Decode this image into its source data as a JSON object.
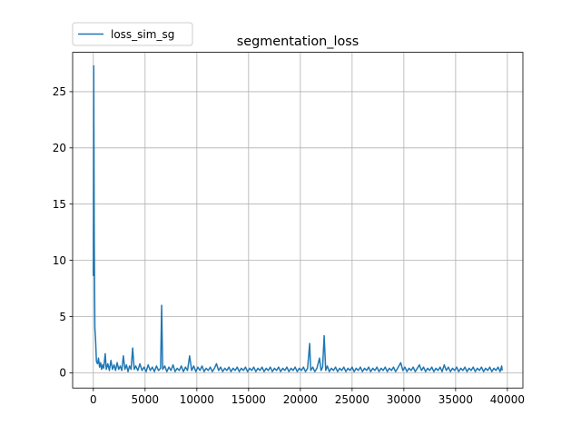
{
  "chart_data": {
    "type": "line",
    "title": "segmentation_loss",
    "xlabel": "",
    "ylabel": "",
    "xlim": [
      -2000,
      41500
    ],
    "ylim": [
      -1.36,
      28.5
    ],
    "xticks": [
      0,
      5000,
      10000,
      15000,
      20000,
      25000,
      30000,
      35000,
      40000
    ],
    "yticks": [
      0,
      5,
      10,
      15,
      20,
      25
    ],
    "grid": true,
    "legend_position": "top-left",
    "series": [
      {
        "name": "loss_sim_sg",
        "color": "#1f77b4",
        "points": [
          [
            0,
            8.6
          ],
          [
            40,
            27.3
          ],
          [
            90,
            12.0
          ],
          [
            150,
            4.0
          ],
          [
            220,
            2.9
          ],
          [
            300,
            1.0
          ],
          [
            400,
            0.8
          ],
          [
            500,
            1.3
          ],
          [
            600,
            0.5
          ],
          [
            700,
            0.9
          ],
          [
            800,
            0.3
          ],
          [
            900,
            0.7
          ],
          [
            1000,
            0.4
          ],
          [
            1150,
            1.7
          ],
          [
            1250,
            0.3
          ],
          [
            1400,
            0.8
          ],
          [
            1550,
            0.2
          ],
          [
            1700,
            1.1
          ],
          [
            1850,
            0.3
          ],
          [
            2000,
            0.7
          ],
          [
            2150,
            0.2
          ],
          [
            2300,
            0.9
          ],
          [
            2450,
            0.3
          ],
          [
            2600,
            0.6
          ],
          [
            2750,
            0.2
          ],
          [
            2900,
            1.5
          ],
          [
            3050,
            0.3
          ],
          [
            3200,
            0.7
          ],
          [
            3350,
            0.1
          ],
          [
            3500,
            0.6
          ],
          [
            3650,
            0.3
          ],
          [
            3800,
            2.2
          ],
          [
            3950,
            0.3
          ],
          [
            4100,
            0.6
          ],
          [
            4300,
            0.2
          ],
          [
            4500,
            0.8
          ],
          [
            4700,
            0.2
          ],
          [
            4900,
            0.5
          ],
          [
            5100,
            0.1
          ],
          [
            5300,
            0.7
          ],
          [
            5500,
            0.2
          ],
          [
            5700,
            0.5
          ],
          [
            5900,
            0.1
          ],
          [
            6100,
            0.6
          ],
          [
            6300,
            0.2
          ],
          [
            6500,
            0.4
          ],
          [
            6600,
            6.0
          ],
          [
            6700,
            0.3
          ],
          [
            6900,
            0.6
          ],
          [
            7100,
            0.1
          ],
          [
            7300,
            0.5
          ],
          [
            7500,
            0.2
          ],
          [
            7700,
            0.7
          ],
          [
            7900,
            0.1
          ],
          [
            8100,
            0.4
          ],
          [
            8300,
            0.2
          ],
          [
            8500,
            0.6
          ],
          [
            8700,
            0.1
          ],
          [
            8900,
            0.5
          ],
          [
            9100,
            0.2
          ],
          [
            9300,
            1.5
          ],
          [
            9500,
            0.2
          ],
          [
            9700,
            0.6
          ],
          [
            9900,
            0.1
          ],
          [
            10100,
            0.5
          ],
          [
            10300,
            0.2
          ],
          [
            10500,
            0.6
          ],
          [
            10700,
            0.1
          ],
          [
            10900,
            0.4
          ],
          [
            11100,
            0.2
          ],
          [
            11300,
            0.5
          ],
          [
            11500,
            0.1
          ],
          [
            11700,
            0.4
          ],
          [
            11900,
            0.8
          ],
          [
            12100,
            0.2
          ],
          [
            12300,
            0.5
          ],
          [
            12500,
            0.1
          ],
          [
            12700,
            0.4
          ],
          [
            12900,
            0.2
          ],
          [
            13100,
            0.5
          ],
          [
            13300,
            0.1
          ],
          [
            13500,
            0.4
          ],
          [
            13700,
            0.2
          ],
          [
            13900,
            0.5
          ],
          [
            14100,
            0.1
          ],
          [
            14300,
            0.4
          ],
          [
            14500,
            0.2
          ],
          [
            14700,
            0.5
          ],
          [
            14900,
            0.1
          ],
          [
            15100,
            0.4
          ],
          [
            15300,
            0.2
          ],
          [
            15500,
            0.5
          ],
          [
            15700,
            0.1
          ],
          [
            15900,
            0.4
          ],
          [
            16100,
            0.2
          ],
          [
            16300,
            0.5
          ],
          [
            16500,
            0.1
          ],
          [
            16700,
            0.4
          ],
          [
            16900,
            0.2
          ],
          [
            17100,
            0.5
          ],
          [
            17300,
            0.1
          ],
          [
            17500,
            0.4
          ],
          [
            17700,
            0.2
          ],
          [
            17900,
            0.5
          ],
          [
            18100,
            0.1
          ],
          [
            18300,
            0.4
          ],
          [
            18500,
            0.2
          ],
          [
            18700,
            0.5
          ],
          [
            18900,
            0.1
          ],
          [
            19100,
            0.4
          ],
          [
            19300,
            0.2
          ],
          [
            19500,
            0.5
          ],
          [
            19700,
            0.1
          ],
          [
            19900,
            0.4
          ],
          [
            20100,
            0.2
          ],
          [
            20300,
            0.5
          ],
          [
            20500,
            0.1
          ],
          [
            20700,
            0.4
          ],
          [
            20900,
            2.6
          ],
          [
            21000,
            0.2
          ],
          [
            21200,
            0.5
          ],
          [
            21400,
            0.1
          ],
          [
            21600,
            0.4
          ],
          [
            21850,
            1.3
          ],
          [
            22000,
            0.2
          ],
          [
            22150,
            0.5
          ],
          [
            22300,
            3.3
          ],
          [
            22450,
            0.2
          ],
          [
            22600,
            0.6
          ],
          [
            22800,
            0.1
          ],
          [
            23000,
            0.4
          ],
          [
            23200,
            0.2
          ],
          [
            23400,
            0.5
          ],
          [
            23600,
            0.1
          ],
          [
            23800,
            0.4
          ],
          [
            24000,
            0.2
          ],
          [
            24200,
            0.5
          ],
          [
            24400,
            0.1
          ],
          [
            24600,
            0.4
          ],
          [
            24800,
            0.2
          ],
          [
            25000,
            0.5
          ],
          [
            25200,
            0.1
          ],
          [
            25400,
            0.4
          ],
          [
            25600,
            0.2
          ],
          [
            25800,
            0.5
          ],
          [
            26000,
            0.1
          ],
          [
            26200,
            0.4
          ],
          [
            26400,
            0.2
          ],
          [
            26600,
            0.5
          ],
          [
            26800,
            0.1
          ],
          [
            27000,
            0.4
          ],
          [
            27200,
            0.2
          ],
          [
            27400,
            0.5
          ],
          [
            27600,
            0.1
          ],
          [
            27800,
            0.4
          ],
          [
            28000,
            0.2
          ],
          [
            28200,
            0.5
          ],
          [
            28400,
            0.1
          ],
          [
            28600,
            0.4
          ],
          [
            28800,
            0.2
          ],
          [
            29000,
            0.5
          ],
          [
            29200,
            0.1
          ],
          [
            29400,
            0.4
          ],
          [
            29700,
            0.9
          ],
          [
            29900,
            0.2
          ],
          [
            30100,
            0.5
          ],
          [
            30300,
            0.1
          ],
          [
            30500,
            0.4
          ],
          [
            30700,
            0.2
          ],
          [
            30900,
            0.5
          ],
          [
            31100,
            0.1
          ],
          [
            31300,
            0.4
          ],
          [
            31500,
            0.7
          ],
          [
            31700,
            0.2
          ],
          [
            31900,
            0.5
          ],
          [
            32100,
            0.1
          ],
          [
            32300,
            0.4
          ],
          [
            32500,
            0.2
          ],
          [
            32700,
            0.5
          ],
          [
            32900,
            0.1
          ],
          [
            33100,
            0.4
          ],
          [
            33300,
            0.2
          ],
          [
            33500,
            0.5
          ],
          [
            33700,
            0.1
          ],
          [
            33900,
            0.7
          ],
          [
            34100,
            0.2
          ],
          [
            34300,
            0.5
          ],
          [
            34500,
            0.1
          ],
          [
            34700,
            0.4
          ],
          [
            34900,
            0.2
          ],
          [
            35100,
            0.5
          ],
          [
            35300,
            0.1
          ],
          [
            35500,
            0.4
          ],
          [
            35700,
            0.2
          ],
          [
            35900,
            0.5
          ],
          [
            36100,
            0.1
          ],
          [
            36300,
            0.4
          ],
          [
            36500,
            0.2
          ],
          [
            36700,
            0.5
          ],
          [
            36900,
            0.1
          ],
          [
            37100,
            0.4
          ],
          [
            37300,
            0.2
          ],
          [
            37500,
            0.5
          ],
          [
            37700,
            0.1
          ],
          [
            37900,
            0.4
          ],
          [
            38100,
            0.2
          ],
          [
            38300,
            0.5
          ],
          [
            38500,
            0.1
          ],
          [
            38700,
            0.4
          ],
          [
            38900,
            0.2
          ],
          [
            39100,
            0.5
          ],
          [
            39300,
            0.1
          ],
          [
            39450,
            0.6
          ],
          [
            39500,
            0.2
          ]
        ]
      }
    ]
  }
}
